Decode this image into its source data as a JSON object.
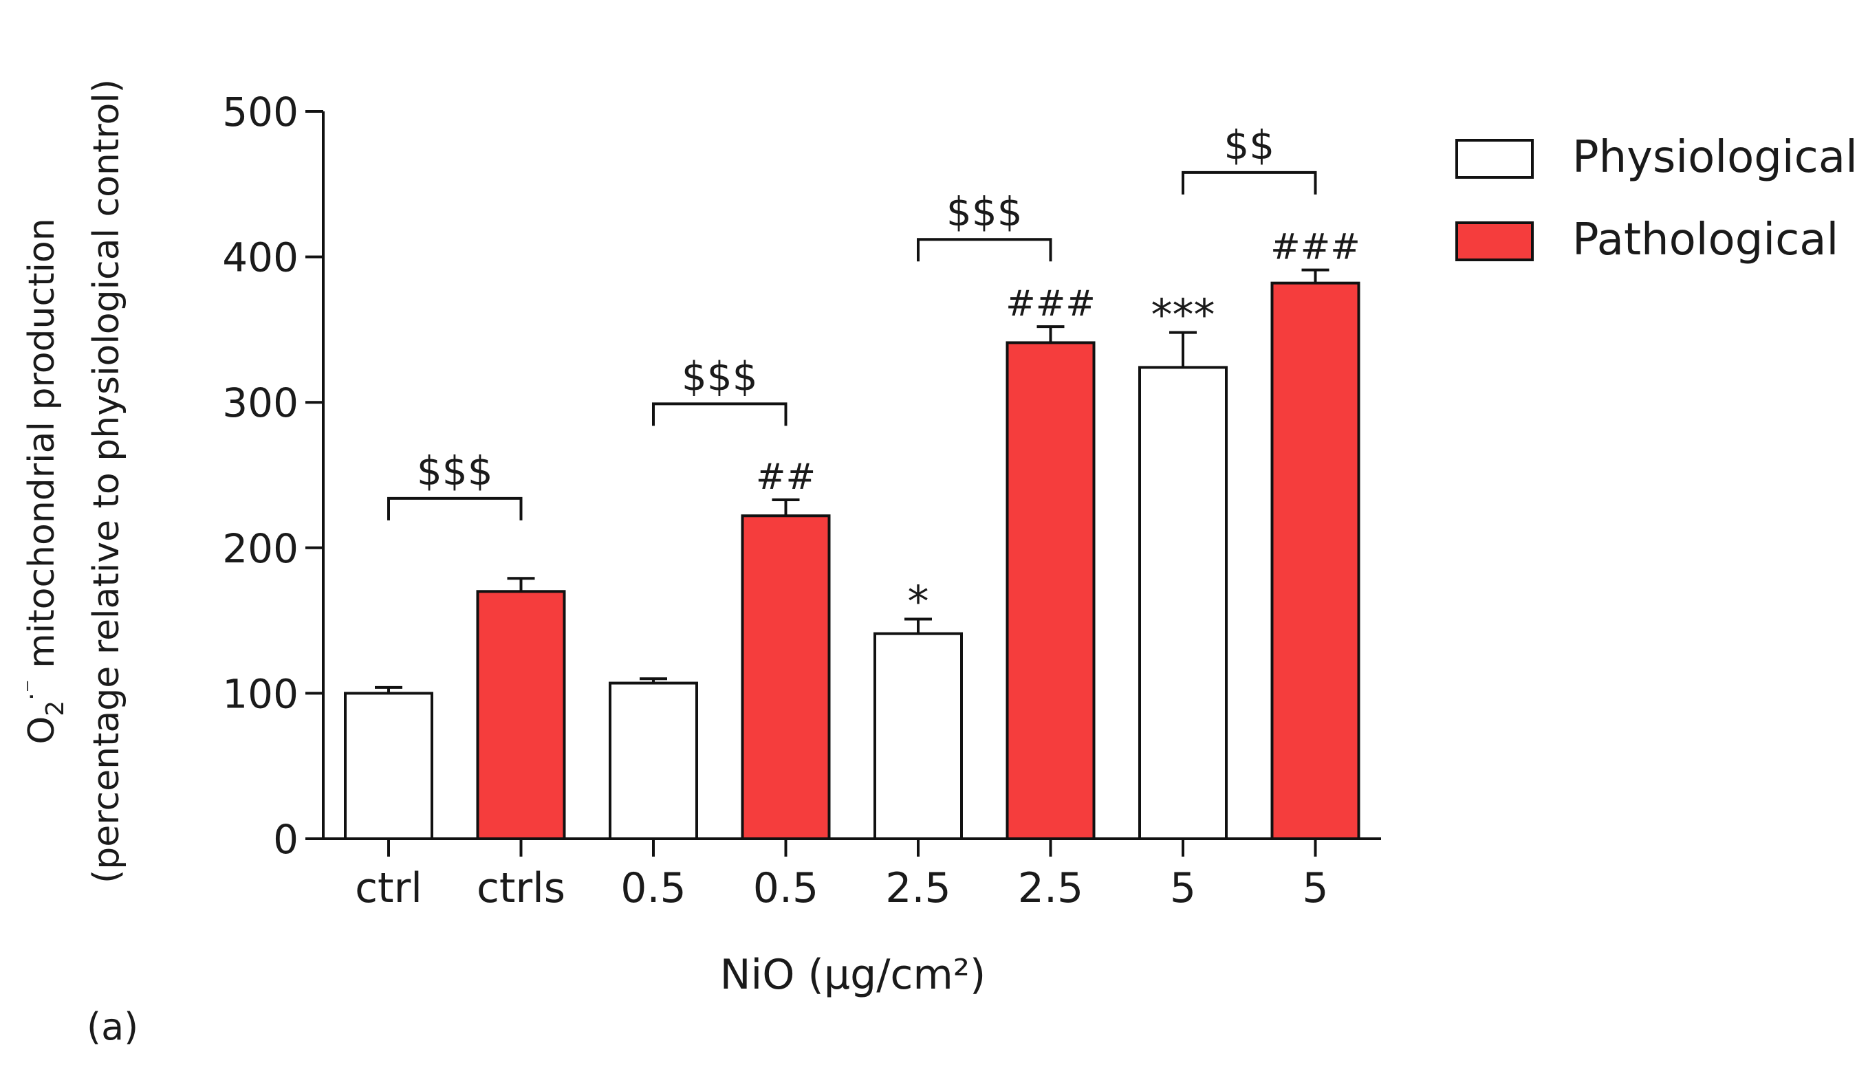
{
  "panel_label": "(a)",
  "colors": {
    "physiological_fill": "#ffffff",
    "pathological_fill": "#f53d3d",
    "stroke": "#111111"
  },
  "chart_data": {
    "type": "bar",
    "title": "",
    "xlabel": "NiO (µg/cm²)",
    "ylabel_line1_prefix": "O",
    "ylabel_line1_sub": "2",
    "ylabel_line1_sup": "·⁻",
    "ylabel_line1_rest": " mitochondrial production",
    "ylabel_line2": "(percentage relative to physiological control)",
    "ylim": [
      0,
      500
    ],
    "yticks": [
      0,
      100,
      200,
      300,
      400,
      500
    ],
    "categories": [
      "ctrl",
      "ctrls",
      "0.5",
      "0.5",
      "2.5",
      "2.5",
      "5",
      "5"
    ],
    "bars": [
      {
        "category": "ctrl",
        "series": "Physiological",
        "value": 100,
        "error": 4,
        "annotation": ""
      },
      {
        "category": "ctrls",
        "series": "Pathological",
        "value": 170,
        "error": 9,
        "annotation": ""
      },
      {
        "category": "0.5",
        "series": "Physiological",
        "value": 107,
        "error": 3,
        "annotation": ""
      },
      {
        "category": "0.5",
        "series": "Pathological",
        "value": 222,
        "error": 11,
        "annotation": "##"
      },
      {
        "category": "2.5",
        "series": "Physiological",
        "value": 141,
        "error": 10,
        "annotation": "*"
      },
      {
        "category": "2.5",
        "series": "Pathological",
        "value": 341,
        "error": 11,
        "annotation": "###"
      },
      {
        "category": "5",
        "series": "Physiological",
        "value": 324,
        "error": 24,
        "annotation": "***"
      },
      {
        "category": "5",
        "series": "Pathological",
        "value": 382,
        "error": 9,
        "annotation": "###"
      }
    ],
    "comparisons": [
      {
        "from": 0,
        "to": 1,
        "label": "$$$",
        "level": 234
      },
      {
        "from": 2,
        "to": 3,
        "label": "$$$",
        "level": 299
      },
      {
        "from": 4,
        "to": 5,
        "label": "$$$",
        "level": 412
      },
      {
        "from": 6,
        "to": 7,
        "label": "$$",
        "level": 458
      }
    ],
    "legend": {
      "position": "top-right",
      "entries": [
        {
          "name": "Physiological",
          "color": "#ffffff"
        },
        {
          "name": "Pathological",
          "color": "#f53d3d"
        }
      ]
    }
  }
}
